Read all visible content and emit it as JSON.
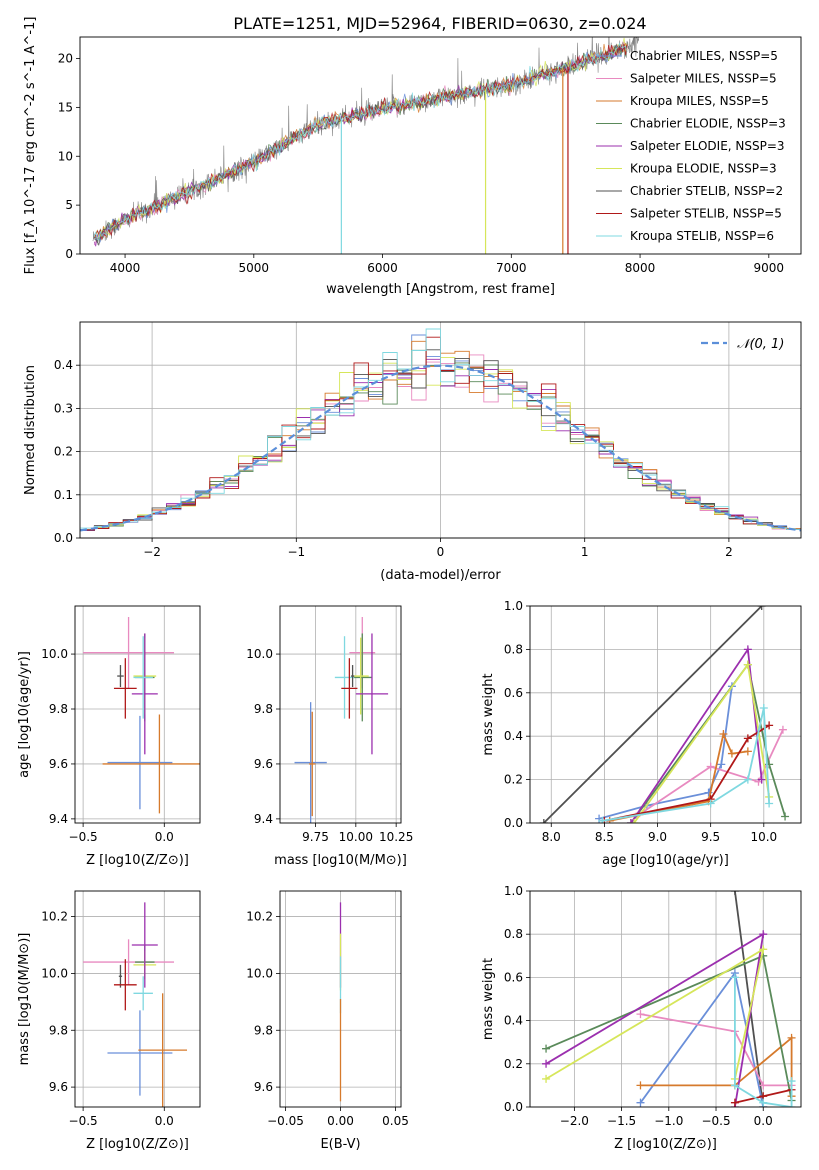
{
  "figure": {
    "title": "PLATE=1251, MJD=52964, FIBERID=0630, z=0.024"
  },
  "colors": {
    "axes": "#000000",
    "grid": "#b0b0b0",
    "background": "#ffffff"
  },
  "chart_data": [
    {
      "id": "spectrum",
      "type": "line",
      "title": "PLATE=1251, MJD=52964, FIBERID=0630, z=0.024",
      "xlabel": "wavelength [Angstrom, rest frame]",
      "ylabel": "Flux [f_λ 10^-17 erg cm^-2 s^-1 A^-1]",
      "xlim": [
        3650,
        9250
      ],
      "ylim": [
        0,
        22.2
      ],
      "xticks": [
        4000,
        5000,
        6000,
        7000,
        8000,
        9000
      ],
      "yticks": [
        0,
        5,
        10,
        15,
        20
      ],
      "grid": false,
      "legend_position": "top-right",
      "data_color": "#808080",
      "data_trend": {
        "x": [
          3750,
          4000,
          4500,
          5000,
          5500,
          6000,
          6500,
          7000,
          7500,
          7900,
          8000
        ],
        "y": [
          1.5,
          3.5,
          6.4,
          9.4,
          13.3,
          14.8,
          16.1,
          17.3,
          19.4,
          21.2,
          22.0
        ]
      },
      "series": [
        {
          "name": "Chabrier MILES, N_SSP=5",
          "color": "#6a8fd9"
        },
        {
          "name": "Salpeter MILES, N_SSP=5",
          "color": "#e88ac0"
        },
        {
          "name": "Kroupa MILES, N_SSP=5",
          "color": "#d67a2c"
        },
        {
          "name": "Chabrier ELODIE, N_SSP=3",
          "color": "#5a8a5a"
        },
        {
          "name": "Salpeter ELODIE, N_SSP=3",
          "color": "#9b2fae"
        },
        {
          "name": "Kroupa ELODIE, N_SSP=3",
          "color": "#d6e65a"
        },
        {
          "name": "Chabrier STELIB, N_SSP=2",
          "color": "#505050"
        },
        {
          "name": "Salpeter STELIB, N_SSP=5",
          "color": "#b01818"
        },
        {
          "name": "Kroupa STELIB, N_SSP=6",
          "color": "#7fd8e0"
        }
      ],
      "drops": [
        {
          "x": 5680,
          "color": "#7fd8e0"
        },
        {
          "x": 6800,
          "color": "#d6e65a"
        },
        {
          "x": 7400,
          "color": "#d67a2c"
        },
        {
          "x": 7440,
          "color": "#b01818"
        }
      ]
    },
    {
      "id": "residuals",
      "type": "line",
      "xlabel": "(data-model)/error",
      "ylabel": "Normed distribution",
      "xlim": [
        -2.5,
        2.5
      ],
      "ylim": [
        0,
        0.5
      ],
      "xticks": [
        -2,
        -1,
        0,
        1,
        2
      ],
      "yticks": [
        0.0,
        0.1,
        0.2,
        0.3,
        0.4
      ],
      "grid": true,
      "legend_position": "top-right",
      "reference": {
        "name": "𝒩(0, 1)",
        "color": "#5b8fd9",
        "style": "dashed"
      },
      "bin_width": 0.1
    },
    {
      "id": "age_vs_Z",
      "type": "scatter",
      "xlabel": "Z [log10(Z/Z⊙)]",
      "ylabel": "age  [log10(age/yr)]",
      "xlim": [
        -0.55,
        0.22
      ],
      "ylim": [
        9.385,
        10.175
      ],
      "xticks": [
        -0.5,
        0.0
      ],
      "yticks": [
        9.4,
        9.6,
        9.8,
        10.0
      ],
      "grid": true,
      "points": [
        {
          "x": -0.22,
          "y": 10.005,
          "xerr": 0.28,
          "yerr": 0.13,
          "color": "#e88ac0"
        },
        {
          "x": -0.12,
          "y": 9.915,
          "xerr": 0.06,
          "yerr": 0.16,
          "color": "#5a8a5a"
        },
        {
          "x": -0.12,
          "y": 9.92,
          "xerr": 0.07,
          "yerr": 0.14,
          "color": "#d6e65a"
        },
        {
          "x": -0.12,
          "y": 9.855,
          "xerr": 0.08,
          "yerr": 0.22,
          "color": "#9b2fae"
        },
        {
          "x": -0.13,
          "y": 9.915,
          "xerr": 0.06,
          "yerr": 0.15,
          "color": "#7fd8e0"
        },
        {
          "x": -0.27,
          "y": 9.92,
          "xerr": 0.02,
          "yerr": 0.04,
          "color": "#505050"
        },
        {
          "x": -0.24,
          "y": 9.875,
          "xerr": 0.07,
          "yerr": 0.11,
          "color": "#b01818"
        },
        {
          "x": -0.15,
          "y": 9.605,
          "xerr": 0.2,
          "yerr": 0.17,
          "color": "#6a8fd9"
        },
        {
          "x": -0.03,
          "y": 9.6,
          "xerr": 0.35,
          "yerr": 0.18,
          "color": "#d67a2c"
        }
      ]
    },
    {
      "id": "age_vs_mass",
      "type": "scatter",
      "xlabel": "mass [log10(M/M⊙)]",
      "ylabel": "",
      "xlim": [
        9.53,
        10.28
      ],
      "ylim": [
        9.385,
        10.175
      ],
      "xticks": [
        9.75,
        10.0,
        10.25
      ],
      "yticks": [
        9.4,
        9.6,
        9.8,
        10.0
      ],
      "grid": true,
      "points": [
        {
          "x": 10.04,
          "y": 10.005,
          "xerr": 0.08,
          "yerr": 0.13,
          "color": "#e88ac0"
        },
        {
          "x": 10.04,
          "y": 9.915,
          "xerr": 0.06,
          "yerr": 0.16,
          "color": "#5a8a5a"
        },
        {
          "x": 10.03,
          "y": 9.92,
          "xerr": 0.05,
          "yerr": 0.14,
          "color": "#d6e65a"
        },
        {
          "x": 10.1,
          "y": 9.855,
          "xerr": 0.1,
          "yerr": 0.22,
          "color": "#9b2fae"
        },
        {
          "x": 9.93,
          "y": 9.915,
          "xerr": 0.06,
          "yerr": 0.15,
          "color": "#7fd8e0"
        },
        {
          "x": 9.98,
          "y": 9.92,
          "xerr": 0.01,
          "yerr": 0.04,
          "color": "#505050"
        },
        {
          "x": 9.96,
          "y": 9.875,
          "xerr": 0.05,
          "yerr": 0.11,
          "color": "#b01818"
        },
        {
          "x": 9.72,
          "y": 9.605,
          "xerr": 0.1,
          "yerr": 0.22,
          "color": "#6a8fd9"
        },
        {
          "x": 9.73,
          "y": 9.6,
          "xerr": 0.02,
          "yerr": 0.19,
          "color": "#d67a2c"
        }
      ]
    },
    {
      "id": "weight_vs_age",
      "type": "line",
      "xlabel": "age  [log10(age/yr)]",
      "ylabel": "mass weight",
      "xlim": [
        7.8,
        10.35
      ],
      "ylim": [
        0,
        1.0
      ],
      "xticks": [
        8.0,
        8.5,
        9.0,
        9.5,
        10.0
      ],
      "yticks": [
        0.0,
        0.2,
        0.4,
        0.6,
        0.8,
        1.0
      ],
      "grid": true,
      "series": [
        {
          "color": "#505050",
          "x": [
            7.93,
            9.98
          ],
          "y": [
            0.0,
            1.0
          ]
        },
        {
          "color": "#6a8fd9",
          "x": [
            8.45,
            8.9,
            9.48,
            9.6,
            9.7
          ],
          "y": [
            0.02,
            0.08,
            0.14,
            0.27,
            0.63
          ]
        },
        {
          "color": "#e88ac0",
          "x": [
            8.8,
            9.5,
            9.95,
            10.18
          ],
          "y": [
            0.03,
            0.26,
            0.19,
            0.43
          ]
        },
        {
          "color": "#d67a2c",
          "x": [
            8.55,
            9.48,
            9.62,
            9.7,
            9.85
          ],
          "y": [
            0.01,
            0.1,
            0.41,
            0.32,
            0.33
          ]
        },
        {
          "color": "#5a8a5a",
          "x": [
            8.75,
            9.85,
            10.05,
            10.2
          ],
          "y": [
            0.0,
            0.73,
            0.27,
            0.03
          ]
        },
        {
          "color": "#9b2fae",
          "x": [
            8.75,
            9.85,
            9.98
          ],
          "y": [
            0.0,
            0.8,
            0.2
          ]
        },
        {
          "color": "#d6e65a",
          "x": [
            8.78,
            9.85,
            10.05
          ],
          "y": [
            0.0,
            0.73,
            0.12
          ]
        },
        {
          "color": "#b01818",
          "x": [
            8.5,
            9.5,
            9.85,
            10.05
          ],
          "y": [
            0.01,
            0.11,
            0.39,
            0.45
          ]
        },
        {
          "color": "#7fd8e0",
          "x": [
            8.48,
            9.5,
            9.85,
            10.0,
            10.05
          ],
          "y": [
            0.01,
            0.09,
            0.2,
            0.53,
            0.09
          ]
        }
      ]
    },
    {
      "id": "mass_vs_Z",
      "type": "scatter",
      "xlabel": "Z [log10(Z/Z⊙)]",
      "ylabel": "mass [log10(M/M⊙)]",
      "xlim": [
        -0.55,
        0.22
      ],
      "ylim": [
        9.53,
        10.29
      ],
      "xticks": [
        -0.5,
        0.0
      ],
      "yticks": [
        9.6,
        9.8,
        10.0,
        10.2
      ],
      "grid": true,
      "points": [
        {
          "x": -0.22,
          "y": 10.04,
          "xerr": 0.28,
          "yerr": 0.08,
          "color": "#e88ac0"
        },
        {
          "x": -0.12,
          "y": 10.04,
          "xerr": 0.06,
          "yerr": 0.06,
          "color": "#5a8a5a"
        },
        {
          "x": -0.12,
          "y": 10.03,
          "xerr": 0.07,
          "yerr": 0.05,
          "color": "#d6e65a"
        },
        {
          "x": -0.12,
          "y": 10.1,
          "xerr": 0.08,
          "yerr": 0.15,
          "color": "#9b2fae"
        },
        {
          "x": -0.13,
          "y": 9.93,
          "xerr": 0.06,
          "yerr": 0.06,
          "color": "#7fd8e0"
        },
        {
          "x": -0.27,
          "y": 9.99,
          "xerr": 0.01,
          "yerr": 0.04,
          "color": "#505050"
        },
        {
          "x": -0.24,
          "y": 9.96,
          "xerr": 0.07,
          "yerr": 0.09,
          "color": "#b01818"
        },
        {
          "x": -0.15,
          "y": 9.72,
          "xerr": 0.2,
          "yerr": 0.15,
          "color": "#6a8fd9"
        },
        {
          "x": -0.01,
          "y": 9.73,
          "xerr": 0.15,
          "yerr": 0.2,
          "color": "#d67a2c"
        }
      ]
    },
    {
      "id": "mass_vs_EBV",
      "type": "scatter",
      "xlabel": "E(B-V)",
      "ylabel": "",
      "xlim": [
        -0.055,
        0.055
      ],
      "ylim": [
        9.53,
        10.29
      ],
      "xticks": [
        -0.05,
        0.0,
        0.05
      ],
      "yticks": [
        9.6,
        9.8,
        10.0,
        10.2
      ],
      "grid": true,
      "points": [
        {
          "x": 0.0,
          "y": 10.1,
          "xerr": 0,
          "yerr": 0.15,
          "color": "#9b2fae"
        },
        {
          "x": 0.0,
          "y": 10.04,
          "xerr": 0,
          "yerr": 0.1,
          "color": "#d6e65a"
        },
        {
          "x": 0.0,
          "y": 9.96,
          "xerr": 0,
          "yerr": 0.1,
          "color": "#7fd8e0"
        },
        {
          "x": 0.0,
          "y": 9.73,
          "xerr": 0,
          "yerr": 0.18,
          "color": "#d67a2c"
        }
      ]
    },
    {
      "id": "weight_vs_Z",
      "type": "line",
      "xlabel": "Z [log10(Z/Z⊙)]",
      "ylabel": "mass weight",
      "xlim": [
        -2.47,
        0.4
      ],
      "ylim": [
        0,
        1.0
      ],
      "xticks": [
        -2.0,
        -1.5,
        -1.0,
        -0.5,
        0.0
      ],
      "yticks": [
        0.0,
        0.2,
        0.4,
        0.6,
        0.8,
        1.0
      ],
      "grid": true,
      "series": [
        {
          "color": "#505050",
          "x": [
            -0.3,
            0.0
          ],
          "y": [
            1.0,
            0.0
          ]
        },
        {
          "color": "#6a8fd9",
          "x": [
            -1.3,
            -0.3,
            0.0
          ],
          "y": [
            0.02,
            0.62,
            0.0
          ]
        },
        {
          "color": "#e88ac0",
          "x": [
            -1.3,
            -0.3,
            0.0,
            0.3
          ],
          "y": [
            0.43,
            0.35,
            0.1,
            0.1
          ]
        },
        {
          "color": "#d67a2c",
          "x": [
            -1.3,
            -0.3,
            0.3,
            0.3
          ],
          "y": [
            0.1,
            0.1,
            0.32,
            0.05
          ]
        },
        {
          "color": "#5a8a5a",
          "x": [
            -2.3,
            0.0,
            0.3
          ],
          "y": [
            0.27,
            0.7,
            0.03
          ]
        },
        {
          "color": "#9b2fae",
          "x": [
            -2.3,
            0.0,
            -0.3
          ],
          "y": [
            0.2,
            0.8,
            0.0
          ]
        },
        {
          "color": "#d6e65a",
          "x": [
            -2.3,
            0.0,
            -0.3
          ],
          "y": [
            0.13,
            0.73,
            0.13
          ]
        },
        {
          "color": "#b01818",
          "x": [
            -0.3,
            0.0,
            0.3
          ],
          "y": [
            0.02,
            0.05,
            0.08
          ]
        },
        {
          "color": "#7fd8e0",
          "x": [
            -0.3,
            -0.3,
            0.0,
            0.3,
            0.3
          ],
          "y": [
            0.6,
            0.1,
            0.02,
            0.0,
            0.12
          ]
        }
      ]
    }
  ]
}
